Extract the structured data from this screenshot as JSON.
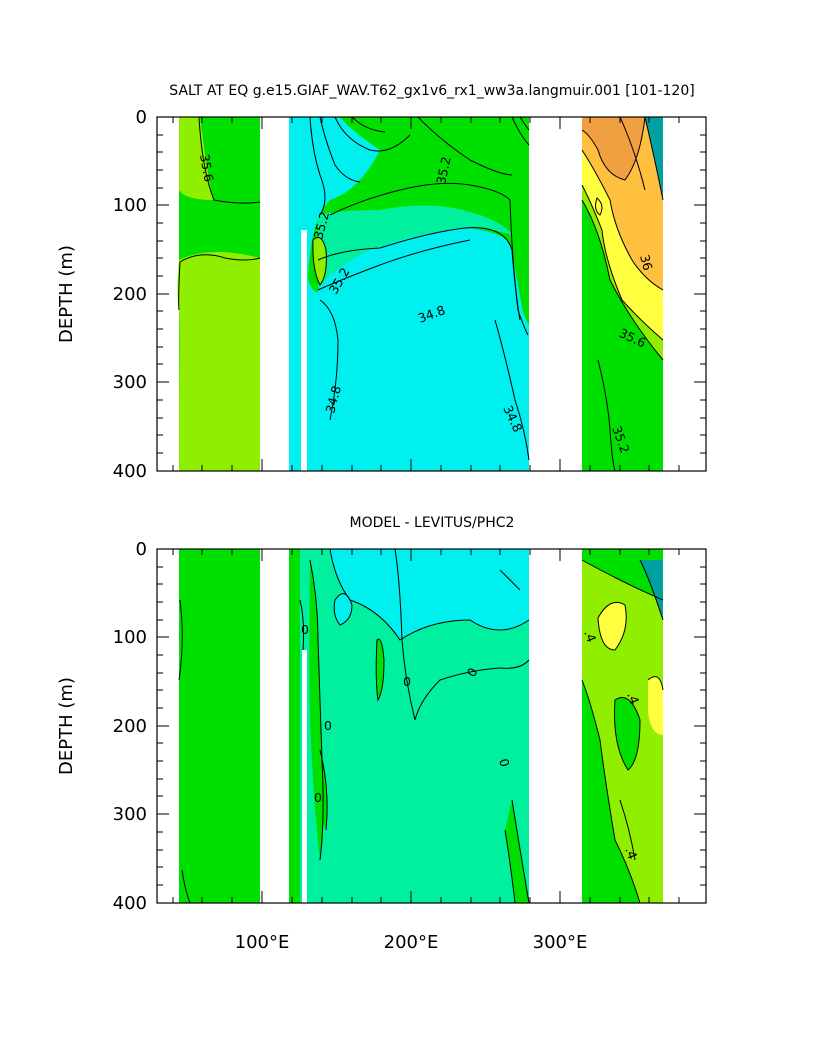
{
  "chart_data": [
    {
      "type": "contour",
      "title": "SALT AT EQ g.e15.GIAF_WAV.T62_gx1v6_rx1_ww3a.langmuir.001 [101-120]",
      "xlabel": "",
      "ylabel": "DEPTH (m)",
      "xlim": [
        27,
        390
      ],
      "ylim": [
        400,
        0
      ],
      "x_ticks": [
        100,
        200,
        300
      ],
      "x_tick_labels": [
        "100°E",
        "200°E",
        "300°E"
      ],
      "y_ticks": [
        0,
        100,
        200,
        300,
        400
      ],
      "y_tick_labels": [
        "0",
        "100",
        "200",
        "300",
        "400"
      ],
      "contour_labels": [
        {
          "text": "35.6",
          "x": 62,
          "depth": 45
        },
        {
          "text": "35.2",
          "x": 130,
          "depth": 130
        },
        {
          "text": "35.2",
          "x": 145,
          "depth": 185
        },
        {
          "text": "35.2",
          "x": 225,
          "depth": 50
        },
        {
          "text": "34.8",
          "x": 210,
          "depth": 235
        },
        {
          "text": "34.8",
          "x": 142,
          "depth": 320
        },
        {
          "text": "34.8",
          "x": 270,
          "depth": 350
        },
        {
          "text": "36",
          "x": 350,
          "depth": 170
        },
        {
          "text": "35.6",
          "x": 350,
          "depth": 255
        },
        {
          "text": "35.2",
          "x": 350,
          "depth": 375
        }
      ]
    },
    {
      "type": "contour",
      "title": "MODEL - LEVITUS/PHC2",
      "xlabel": "",
      "ylabel": "DEPTH (m)",
      "xlim": [
        27,
        390
      ],
      "ylim": [
        400,
        0
      ],
      "x_ticks": [
        100,
        200,
        300
      ],
      "x_tick_labels": [
        "100°E",
        "200°E",
        "300°E"
      ],
      "y_ticks": [
        0,
        100,
        200,
        300,
        400
      ],
      "y_tick_labels": [
        "0",
        "100",
        "200",
        "300",
        "400"
      ],
      "contour_labels": [
        {
          "text": "0",
          "x": 128,
          "depth": 95
        },
        {
          "text": "0",
          "x": 147,
          "depth": 200
        },
        {
          "text": "0",
          "x": 138,
          "depth": 285
        },
        {
          "text": "0",
          "x": 197,
          "depth": 155
        },
        {
          "text": "0",
          "x": 245,
          "depth": 145
        },
        {
          "text": "0",
          "x": 260,
          "depth": 235
        },
        {
          "text": ".4",
          "x": 325,
          "depth": 90
        },
        {
          "text": ".4",
          "x": 350,
          "depth": 165
        },
        {
          "text": ".4",
          "x": 345,
          "depth": 340
        }
      ]
    }
  ],
  "colors": {
    "cyan": "#00f0f0",
    "aqua_green": "#00f0a0",
    "green": "#00e000",
    "light_green": "#90ee00",
    "yellow": "#ffff40",
    "light_orange": "#ffc040",
    "orange": "#f0a040",
    "land": "#ffffff"
  }
}
